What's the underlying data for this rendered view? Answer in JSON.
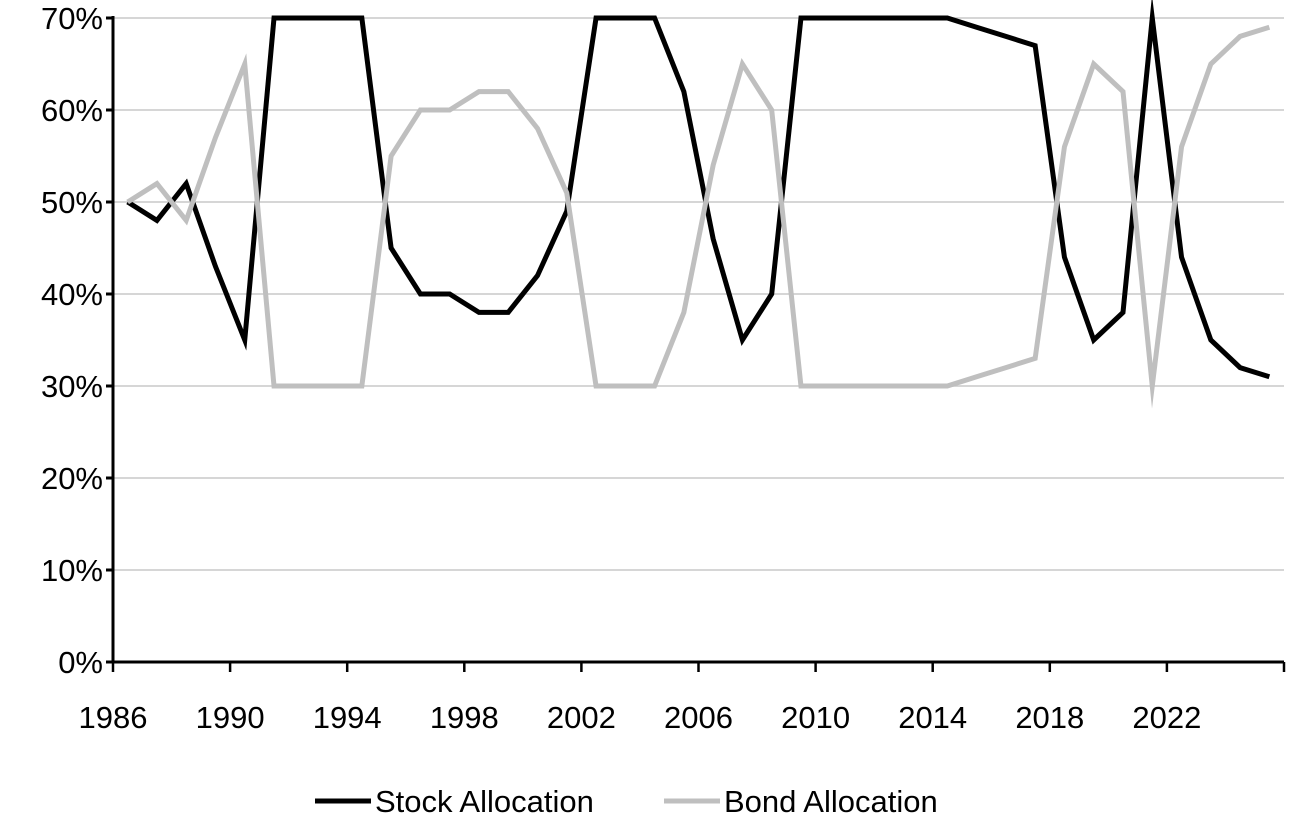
{
  "chart_data": {
    "type": "line",
    "title": "",
    "xlabel": "",
    "ylabel": "",
    "ylim": [
      0,
      70
    ],
    "y_ticks": [
      "0%",
      "10%",
      "20%",
      "30%",
      "40%",
      "50%",
      "60%",
      "70%"
    ],
    "y_tick_values": [
      0,
      10,
      20,
      30,
      40,
      50,
      60,
      70
    ],
    "x_ticks": [
      "1986",
      "1990",
      "1994",
      "1998",
      "2002",
      "2006",
      "2010",
      "2014",
      "2018",
      "2022"
    ],
    "x_tick_values": [
      1986,
      1990,
      1994,
      1998,
      2002,
      2006,
      2010,
      2014,
      2018,
      2022
    ],
    "xlim": [
      1986,
      2026
    ],
    "grid": "horizontal",
    "legend_position": "bottom-center",
    "x": [
      1986.5,
      1987.5,
      1988.5,
      1989.5,
      1990.5,
      1991.5,
      1992.5,
      1993.5,
      1994.5,
      1995.5,
      1996.5,
      1997.5,
      1998.5,
      1999.5,
      2000.5,
      2001.5,
      2002.5,
      2003.5,
      2004.5,
      2005.5,
      2006.5,
      2007.5,
      2008.5,
      2009.5,
      2010.5,
      2011.5,
      2012.5,
      2013.5,
      2014.5,
      2015.5,
      2016.5,
      2017.5,
      2018.5,
      2019.5,
      2020.5,
      2021.5,
      2022.5,
      2023.5,
      2024.5,
      2025.5
    ],
    "series": [
      {
        "name": "Stock Allocation",
        "color": "#000000",
        "values": [
          50,
          48,
          52,
          43,
          35,
          70,
          70,
          70,
          70,
          45,
          40,
          40,
          38,
          38,
          42,
          49,
          70,
          70,
          70,
          62,
          46,
          35,
          40,
          70,
          70,
          70,
          70,
          70,
          70,
          69,
          68,
          67,
          44,
          35,
          38,
          70,
          44,
          35,
          32,
          31
        ]
      },
      {
        "name": "Bond Allocation",
        "color": "#bfbfbf",
        "values": [
          50,
          52,
          48,
          57,
          65,
          30,
          30,
          30,
          30,
          55,
          60,
          60,
          62,
          62,
          58,
          51,
          30,
          30,
          30,
          38,
          54,
          65,
          60,
          30,
          30,
          30,
          30,
          30,
          30,
          31,
          32,
          33,
          56,
          65,
          62,
          30,
          56,
          65,
          68,
          69
        ]
      }
    ]
  }
}
